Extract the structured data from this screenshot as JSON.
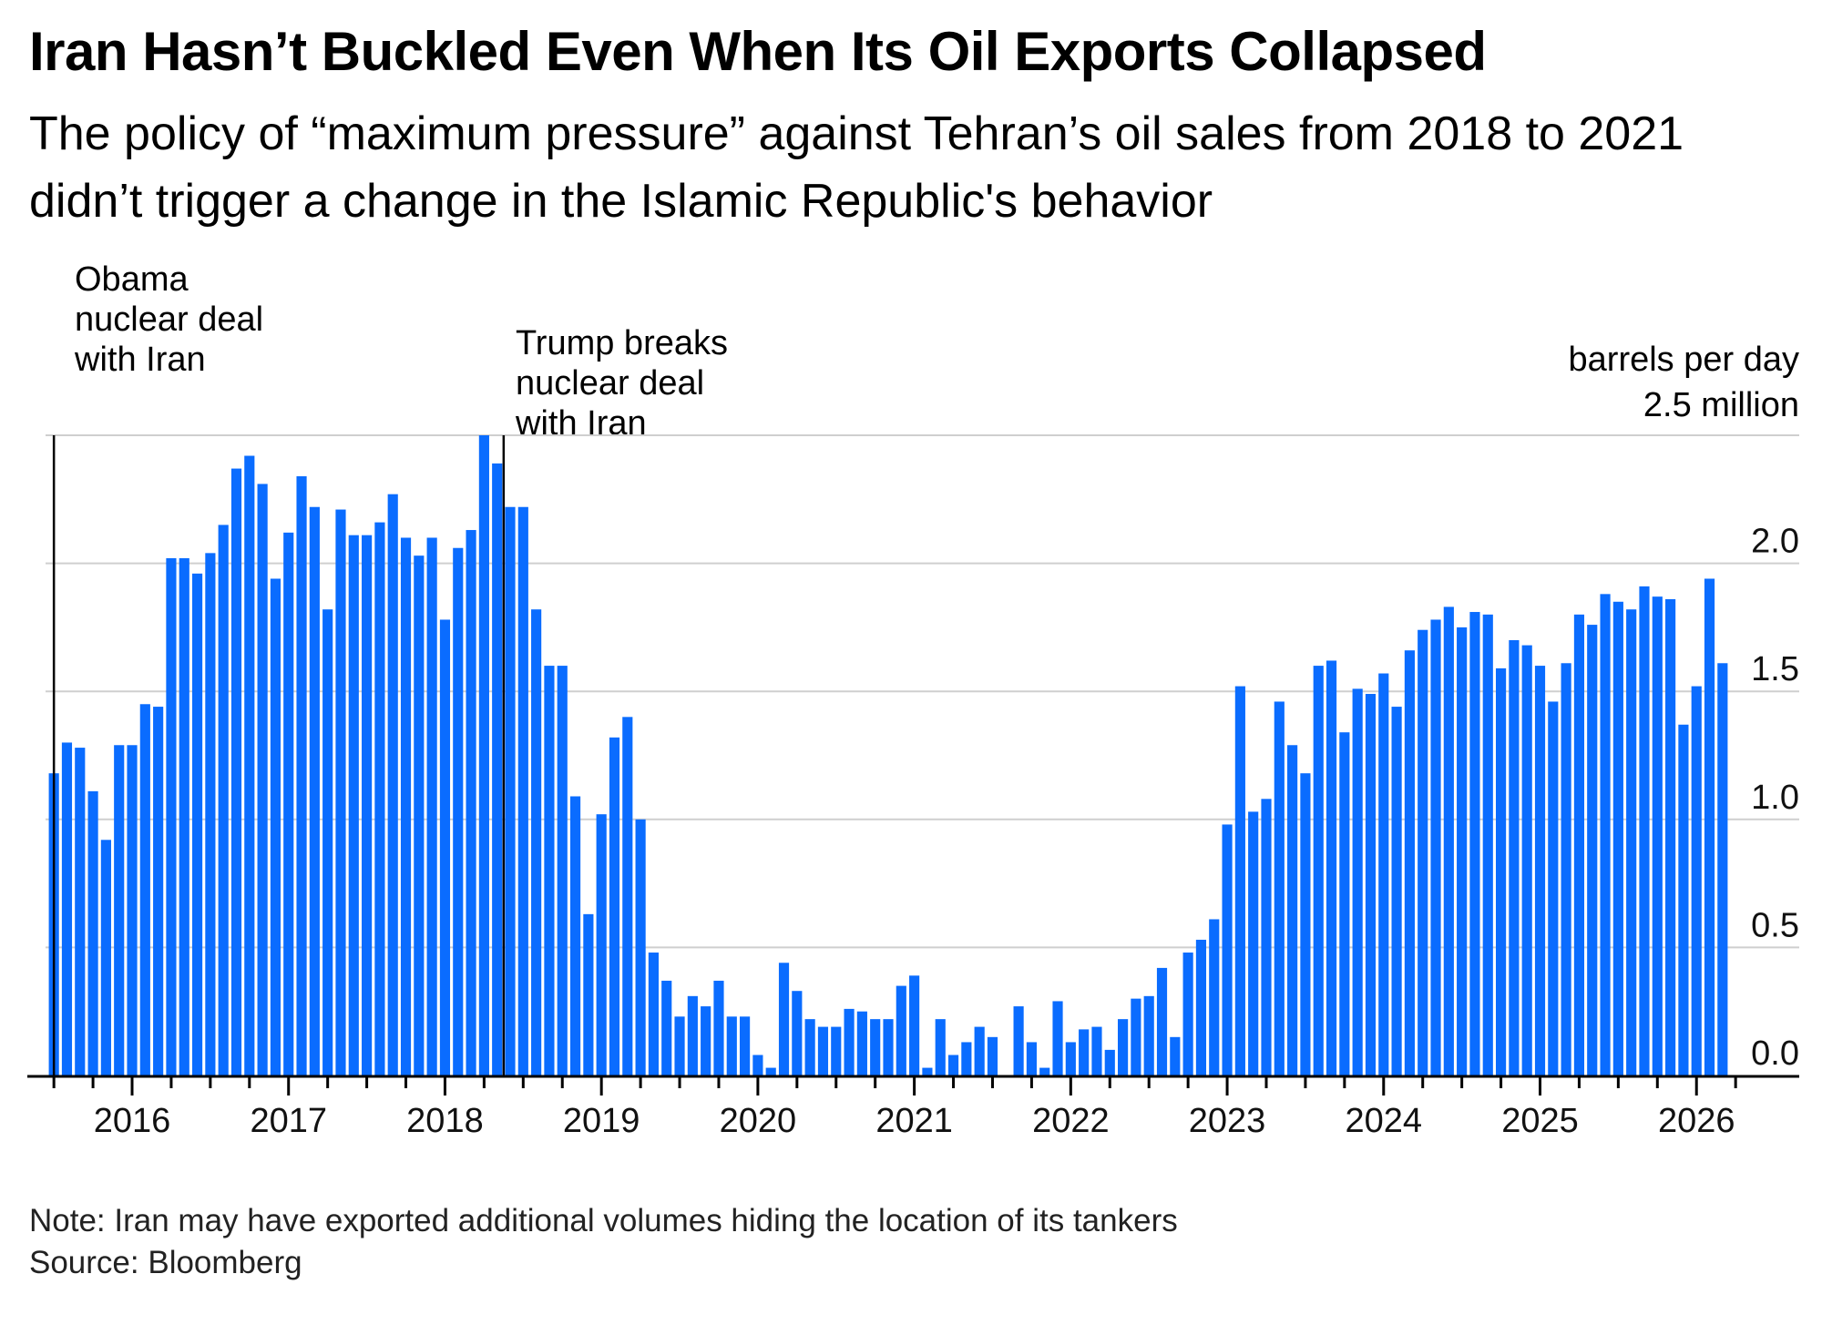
{
  "chart_data": {
    "type": "bar",
    "title": "Iran Hasn’t Buckled Even When Its Oil Exports Collapsed",
    "subtitle": "The policy of “maximum pressure” against Tehran’s oil sales from 2018 to 2021 didn’t trigger a change in the Islamic Republic's behavior",
    "xlabel": "",
    "ylabel": "barrels per day",
    "unit_label": "2.5 million",
    "ylim": [
      0,
      2.5
    ],
    "yticks": [
      "0.0",
      "0.5",
      "1.0",
      "1.5",
      "2.0"
    ],
    "ytick_values": [
      0,
      0.5,
      1.0,
      1.5,
      2.0,
      2.5
    ],
    "grid": true,
    "bar_color": "#0a6cff",
    "start_month": "2015-07",
    "frequency": "monthly",
    "xticks": [
      "2016",
      "2017",
      "2018",
      "2019",
      "2020",
      "2021",
      "2022",
      "2023",
      "2024",
      "2025",
      "2026"
    ],
    "values": [
      1.18,
      1.3,
      1.28,
      1.11,
      0.92,
      1.29,
      1.29,
      1.45,
      1.44,
      2.02,
      2.02,
      1.96,
      2.04,
      2.15,
      2.37,
      2.42,
      2.31,
      1.94,
      2.12,
      2.34,
      2.22,
      1.82,
      2.21,
      2.11,
      2.11,
      2.16,
      2.27,
      2.1,
      2.03,
      2.1,
      1.78,
      2.06,
      2.13,
      2.5,
      2.39,
      2.22,
      2.22,
      1.82,
      1.6,
      1.6,
      1.09,
      0.63,
      1.02,
      1.32,
      1.4,
      1.0,
      0.48,
      0.37,
      0.23,
      0.31,
      0.27,
      0.37,
      0.23,
      0.23,
      0.08,
      0.03,
      0.44,
      0.33,
      0.22,
      0.19,
      0.19,
      0.26,
      0.25,
      0.22,
      0.22,
      0.35,
      0.39,
      0.03,
      0.22,
      0.08,
      0.13,
      0.19,
      0.15,
      0.0,
      0.27,
      0.13,
      0.03,
      0.29,
      0.13,
      0.18,
      0.19,
      0.1,
      0.22,
      0.3,
      0.31,
      0.42,
      0.15,
      0.48,
      0.53,
      0.61,
      0.98,
      1.52,
      1.03,
      1.08,
      1.46,
      1.29,
      1.18,
      1.6,
      1.62,
      1.34,
      1.51,
      1.49,
      1.57,
      1.44,
      1.66,
      1.74,
      1.78,
      1.83,
      1.75,
      1.81,
      1.8,
      1.59,
      1.7,
      1.68,
      1.6,
      1.46,
      1.61,
      1.8,
      1.76,
      1.88,
      1.85,
      1.82,
      1.91,
      1.87,
      1.86,
      1.37,
      1.52,
      1.94,
      1.61
    ],
    "annotations": [
      {
        "text": "Obama\nnuclear deal\nwith Iran",
        "at_bar_index": 0
      },
      {
        "text": "Trump breaks\nnuclear deal\nwith Iran",
        "at_bar_index": 34
      }
    ]
  },
  "footer": {
    "note": "Note: Iran may have exported additional volumes hiding the location of its tankers",
    "source": "Source: Bloomberg"
  }
}
